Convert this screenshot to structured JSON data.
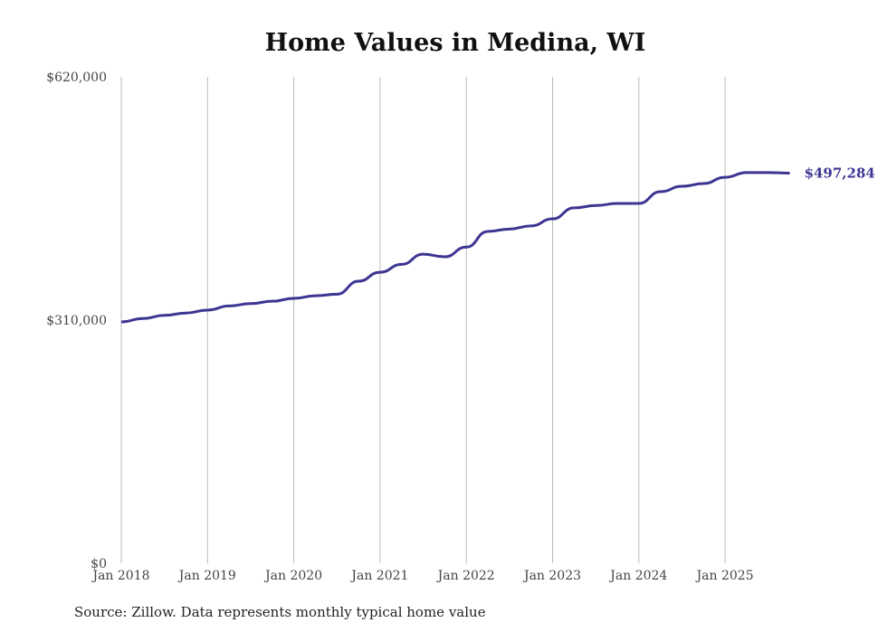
{
  "chart_data": {
    "type": "line",
    "title": "Home Values in Medina, WI",
    "xlabel": "",
    "ylabel": "",
    "ylim": [
      0,
      620000
    ],
    "y_ticks": [
      "$0",
      "$310,000",
      "$620,000"
    ],
    "y_tick_values": [
      0,
      310000,
      620000
    ],
    "x_ticks": [
      "Jan 2018",
      "Jan 2019",
      "Jan 2020",
      "Jan 2021",
      "Jan 2022",
      "Jan 2023",
      "Jan 2024",
      "Jan 2025"
    ],
    "grid": "vertical",
    "color": "#3d3592",
    "end_label": "$497,284",
    "series": [
      {
        "name": "Typical home value",
        "x": [
          "2018-01",
          "2018-04",
          "2018-07",
          "2018-10",
          "2019-01",
          "2019-04",
          "2019-07",
          "2019-10",
          "2020-01",
          "2020-04",
          "2020-07",
          "2020-10",
          "2021-01",
          "2021-04",
          "2021-07",
          "2021-10",
          "2022-01",
          "2022-04",
          "2022-07",
          "2022-10",
          "2023-01",
          "2023-04",
          "2023-07",
          "2023-10",
          "2024-01",
          "2024-04",
          "2024-07",
          "2024-10",
          "2025-01",
          "2025-04",
          "2025-07",
          "2025-10"
        ],
        "values": [
          307700,
          312000,
          316000,
          319000,
          322700,
          328000,
          331000,
          334000,
          337600,
          341000,
          343000,
          359500,
          371000,
          381000,
          394000,
          390600,
          403000,
          423000,
          426000,
          430000,
          439000,
          453000,
          456000,
          458600,
          458600,
          473600,
          480500,
          484000,
          492000,
          498000,
          498000,
          497284
        ]
      }
    ]
  },
  "source": "Source: Zillow. Data represents monthly typical home value"
}
